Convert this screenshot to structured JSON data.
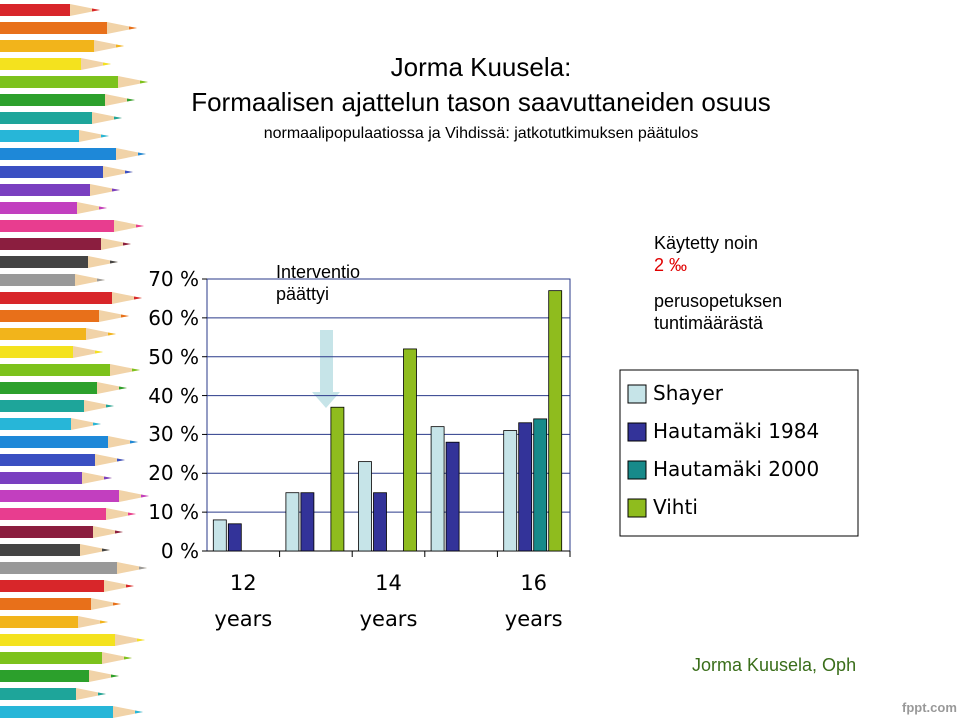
{
  "slide": {
    "heading": "Jorma Kuusela:",
    "title": "Formaalisen ajattelun tason saavuttaneiden osuus",
    "subtitle": "normaalipopulaatiossa ja Vihdissä: jatkotutkimuksen päätulos",
    "note": [
      "Käytetty noin",
      "2 ‰",
      "perusopetuksen",
      "tuntimäärästä"
    ],
    "footer": "Jorma Kuusela, Oph",
    "watermark": "fppt.com"
  },
  "chart_data": {
    "type": "bar",
    "annotation": "Interventio päättyi",
    "categories": [
      "12 years",
      null,
      "14 years",
      null,
      "16 years"
    ],
    "series": [
      {
        "name": "Shayer",
        "color": "#c6e4e8",
        "values": [
          8,
          15,
          23,
          32,
          31
        ]
      },
      {
        "name": "Hautamäki 1984",
        "color": "#333399",
        "values": [
          7,
          15,
          15,
          28,
          33
        ]
      },
      {
        "name": "Hautamäki 2000",
        "color": "#178a8a",
        "values": [
          null,
          null,
          null,
          null,
          34
        ]
      },
      {
        "name": "Vihti",
        "color": "#8fbc1e",
        "values": [
          null,
          37,
          52,
          null,
          67
        ]
      }
    ],
    "ylim": [
      0,
      70
    ],
    "yticks": [
      {
        "value": 0,
        "label": "0 %"
      },
      {
        "value": 10,
        "label": "10 %"
      },
      {
        "value": 20,
        "label": "20 %"
      },
      {
        "value": 30,
        "label": "30 %"
      },
      {
        "value": 40,
        "label": "40 %"
      },
      {
        "value": 50,
        "label": "50 %"
      },
      {
        "value": 60,
        "label": "60 %"
      },
      {
        "value": 70,
        "label": "70 %"
      }
    ],
    "grid": true,
    "legend": "right"
  }
}
